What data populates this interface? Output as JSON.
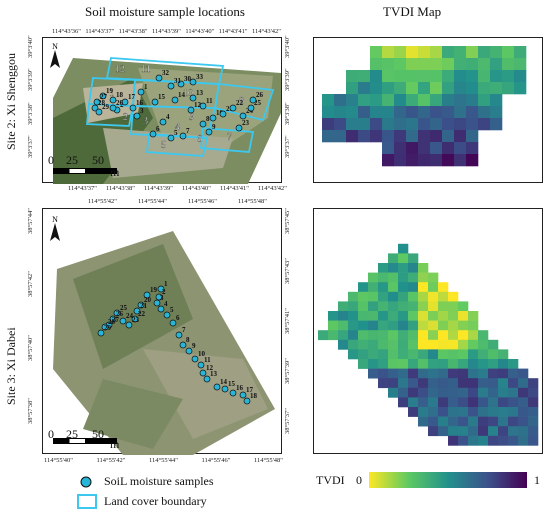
{
  "titles": {
    "left": "Soil moisture sample locations",
    "right": "TVDI Map"
  },
  "sites": {
    "site2": {
      "label": "Site 2: Xi Shenggou",
      "top_lon_ticks": [
        "114°43'36\"",
        "114°43'37\"",
        "114°43'38\"",
        "114°43'39\"",
        "114°43'40\"",
        "114°43'41\"",
        "114°43'42\""
      ],
      "bottom_lon_ticks": [
        "114°43'37\"",
        "114°43'38\"",
        "114°43'39\"",
        "114°43'40\"",
        "114°43'41\"",
        "114°43'42\""
      ],
      "left_lat_ticks": [
        "39°3'40\"",
        "39°3'39\"",
        "39°3'38\"",
        "39°3'37\""
      ],
      "right_lat_ticks": [
        "39°3'40\"",
        "39°3'39\"",
        "39°3'38\"",
        "39°3'37\""
      ],
      "scale": {
        "labels": [
          "0",
          "25",
          "50"
        ],
        "unit": "m"
      },
      "north": "N",
      "zones": [
        "1",
        "2",
        "3",
        "4",
        "5",
        "6",
        "7",
        "8",
        "9",
        "10",
        "11",
        "12"
      ],
      "samples": [
        "1",
        "2",
        "3",
        "4",
        "5",
        "6",
        "7",
        "8",
        "9",
        "10",
        "11",
        "12",
        "13",
        "14",
        "15",
        "16",
        "17",
        "18",
        "19",
        "20",
        "21",
        "22",
        "23",
        "24",
        "25",
        "26",
        "27",
        "28",
        "29",
        "30",
        "31",
        "32",
        "33"
      ]
    },
    "site3": {
      "label": "Site 3: Xi Dabei",
      "top_lon_ticks": [
        "114°55'42\"",
        "114°55'44\"",
        "114°55'46\"",
        "114°55'48\""
      ],
      "bottom_lon_ticks": [
        "114°55'40\"",
        "114°55'42\"",
        "114°55'44\"",
        "114°55'46\"",
        "114°55'48\""
      ],
      "left_lat_ticks": [
        "38°57'44\"",
        "38°57'42\"",
        "38°57'40\"",
        "38°57'38\""
      ],
      "right_lat_ticks": [
        "38°57'45\"",
        "38°57'43\"",
        "38°57'41\"",
        "38°57'39\"",
        "38°57'37\""
      ],
      "scale": {
        "labels": [
          "0",
          "25",
          "50"
        ],
        "unit": "m"
      },
      "north": "N",
      "samples": [
        "1",
        "2",
        "3",
        "4",
        "5",
        "6",
        "7",
        "8",
        "9",
        "10",
        "11",
        "12",
        "13",
        "14",
        "15",
        "16",
        "17",
        "18",
        "19",
        "20",
        "21",
        "22",
        "23",
        "24",
        "25",
        "26",
        "27",
        "28",
        "29"
      ]
    }
  },
  "legend": {
    "samples_label": "SoiL moisture samples",
    "boundary_label": "Land cover boundary",
    "tvdi_label": "TVDI",
    "tvdi_min": "0",
    "tvdi_max": "1"
  },
  "colors": {
    "sample_fill": "#29b6d6",
    "boundary": "#3cc8ef",
    "tvdi_low": "#fde725",
    "tvdi_mid": "#21918c",
    "tvdi_high": "#440154"
  }
}
